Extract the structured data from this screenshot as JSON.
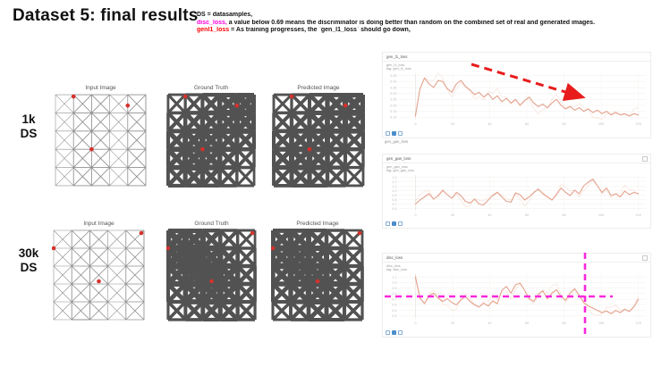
{
  "slide": {
    "title": "Dataset 5: final results"
  },
  "notes": {
    "lines": [
      {
        "head": "DS",
        "head_color": "#111111",
        "tail": " = datasamples,"
      },
      {
        "head": "disc_loss,",
        "head_color": "#ff00dd",
        "tail": " a value below 0.69 means the discriminator is doing better than random on the combined set of real and generated images."
      },
      {
        "head": "genl1_loss",
        "head_color": "#ff0000",
        "tail": " = As training progresses, the `gen_l1_loss` should go down,"
      }
    ]
  },
  "results": {
    "rows": [
      {
        "label_top": "1k",
        "label_bottom": "DS",
        "panels": [
          {
            "title": "Input Image"
          },
          {
            "title": "Ground Truth"
          },
          {
            "title": "Predicted Image"
          }
        ],
        "node_markers": [
          [
            0.2,
            0.02
          ],
          [
            0.8,
            0.12
          ],
          [
            0.4,
            0.6
          ]
        ],
        "dense_regions": [
          [
            0.35,
            0.65
          ],
          [
            0.9,
            0.12
          ]
        ]
      },
      {
        "label_top": "30k",
        "label_bottom": "DS",
        "panels": [
          {
            "title": "Input Image"
          },
          {
            "title": "Ground Truth"
          },
          {
            "title": "Predicted Image"
          }
        ],
        "node_markers": [
          [
            0.97,
            0.03
          ],
          [
            0.0,
            0.2
          ],
          [
            0.5,
            0.57
          ]
        ],
        "dense_regions": [
          [
            0.15,
            0.22
          ],
          [
            0.55,
            0.6
          ]
        ]
      }
    ]
  },
  "tensorboard": {
    "separator_label": "gen_gan_loss",
    "icon_names": [
      "expand-chart",
      "pin-chart",
      "fit-data"
    ]
  },
  "chart_data": [
    {
      "type": "line",
      "tag": "gen_l1_loss",
      "subtitle": "tag: gen_l1_loss",
      "color": "#e3a28d",
      "xticks": [
        "0",
        "20",
        "40",
        "60",
        "80",
        "100",
        "120"
      ],
      "yticks": [
        "0.10",
        "0.15",
        "0.20",
        "0.25",
        "0.30",
        "0.35",
        "0.40",
        "0.45"
      ],
      "ylim": [
        0.08,
        0.47
      ],
      "xlabel": "",
      "ylabel": "",
      "values": [
        0.11,
        0.34,
        0.43,
        0.38,
        0.35,
        0.41,
        0.4,
        0.34,
        0.31,
        0.38,
        0.41,
        0.36,
        0.33,
        0.29,
        0.31,
        0.27,
        0.3,
        0.25,
        0.28,
        0.23,
        0.26,
        0.22,
        0.25,
        0.2,
        0.24,
        0.27,
        0.22,
        0.19,
        0.21,
        0.18,
        0.22,
        0.25,
        0.2,
        0.17,
        0.19,
        0.16,
        0.18,
        0.15,
        0.17,
        0.14,
        0.16,
        0.13,
        0.15,
        0.12,
        0.14,
        0.12,
        0.13,
        0.11,
        0.13,
        0.12
      ],
      "annotation": "red dashed arrow showing downward trend"
    },
    {
      "type": "line",
      "tag": "gen_gan_loss",
      "subtitle": "tag: gen_gan_loss",
      "color": "#e3a28d",
      "xticks": [
        "0",
        "20",
        "40",
        "60",
        "80",
        "100",
        "120"
      ],
      "yticks": [
        "0.6",
        "0.7",
        "0.8",
        "0.9",
        "1.0",
        "1.1",
        "1.2",
        "1.3"
      ],
      "ylim": [
        0.55,
        1.35
      ],
      "xlabel": "",
      "ylabel": "",
      "values": [
        0.7,
        0.79,
        0.86,
        0.93,
        0.81,
        0.89,
        1.01,
        0.91,
        0.83,
        0.96,
        0.89,
        0.76,
        0.72,
        0.81,
        0.7,
        0.68,
        0.79,
        0.89,
        0.96,
        0.86,
        0.76,
        0.74,
        0.95,
        0.91,
        0.79,
        0.86,
        0.96,
        1.03,
        0.93,
        0.86,
        0.79,
        0.91,
        1.06,
        0.96,
        0.89,
        1.01,
        0.93,
        1.11,
        1.19,
        1.26,
        1.11,
        0.96,
        1.06,
        0.89,
        0.93,
        0.86,
        0.99,
        0.91,
        0.96,
        0.93
      ],
      "annotation": ""
    },
    {
      "type": "line",
      "tag": "disc_loss",
      "subtitle": "tag: disc_loss",
      "color": "#e3a28d",
      "xticks": [
        "0",
        "20",
        "40",
        "60",
        "80",
        "100",
        "120"
      ],
      "yticks": [
        "0.4",
        "0.5",
        "0.6",
        "0.7",
        "0.8",
        "0.9",
        "1.0",
        "1.1"
      ],
      "ylim": [
        0.35,
        1.15
      ],
      "xlabel": "",
      "ylabel": "",
      "values": [
        1.1,
        0.72,
        0.62,
        0.76,
        0.81,
        0.72,
        0.66,
        0.71,
        0.64,
        0.6,
        0.69,
        0.75,
        0.66,
        0.6,
        0.56,
        0.63,
        0.58,
        0.67,
        0.62,
        0.86,
        0.93,
        0.81,
        0.96,
        0.99,
        0.86,
        0.71,
        0.66,
        0.79,
        0.85,
        0.71,
        0.81,
        0.87,
        0.75,
        0.68,
        0.81,
        0.89,
        0.77,
        0.64,
        0.58,
        0.54,
        0.5,
        0.46,
        0.49,
        0.44,
        0.5,
        0.46,
        0.52,
        0.48,
        0.56,
        0.7
      ],
      "annotation": "magenta dashed crosshair marking ~0.69 threshold late in training"
    }
  ],
  "overlays": {
    "trend_arrow_color": "#e81c1c",
    "crosshair_color": "#fa28dc"
  }
}
